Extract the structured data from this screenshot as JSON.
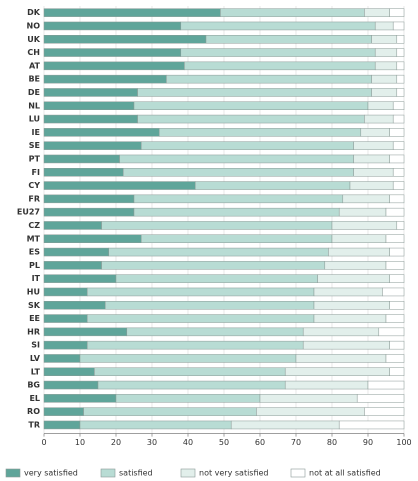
{
  "chart_data": {
    "type": "stacked_barh",
    "categories": [
      "DK",
      "NO",
      "UK",
      "CH",
      "AT",
      "BE",
      "DE",
      "NL",
      "LU",
      "IE",
      "SE",
      "PT",
      "FI",
      "CY",
      "FR",
      "EU27",
      "CZ",
      "MT",
      "ES",
      "PL",
      "IT",
      "HU",
      "SK",
      "EE",
      "HR",
      "SI",
      "LV",
      "LT",
      "BG",
      "EL",
      "RO",
      "TR"
    ],
    "series": [
      {
        "name": "very satisfied",
        "color": "#5fa59a",
        "values": [
          49,
          38,
          45,
          38,
          39,
          34,
          26,
          25,
          26,
          32,
          27,
          21,
          22,
          42,
          25,
          25,
          16,
          27,
          18,
          16,
          20,
          12,
          17,
          12,
          23,
          12,
          10,
          14,
          15,
          20,
          11,
          10
        ]
      },
      {
        "name": "satisfied",
        "color": "#b8dcd4",
        "values": [
          40,
          54,
          46,
          54,
          53,
          57,
          65,
          65,
          63,
          56,
          59,
          65,
          64,
          43,
          58,
          57,
          64,
          53,
          61,
          62,
          56,
          63,
          58,
          63,
          49,
          60,
          60,
          53,
          52,
          40,
          48,
          42
        ]
      },
      {
        "name": "not very satisfied",
        "color": "#e2efeb",
        "values": [
          7,
          5,
          7,
          6,
          6,
          7,
          7,
          7,
          8,
          8,
          11,
          10,
          11,
          12,
          13,
          13,
          18,
          15,
          17,
          17,
          20,
          19,
          21,
          20,
          21,
          24,
          25,
          29,
          23,
          27,
          30,
          30
        ]
      },
      {
        "name": "not at all satisfied",
        "color": "#ffffff",
        "values": [
          4,
          3,
          2,
          2,
          2,
          2,
          2,
          3,
          3,
          4,
          3,
          4,
          3,
          3,
          4,
          5,
          2,
          5,
          4,
          5,
          4,
          6,
          4,
          5,
          7,
          4,
          5,
          4,
          10,
          13,
          11,
          18
        ]
      }
    ],
    "xlim": [
      0,
      100
    ],
    "xticks": [
      0,
      10,
      20,
      30,
      40,
      50,
      60,
      70,
      80,
      90,
      100
    ],
    "grid": true,
    "legend": "bottom"
  }
}
